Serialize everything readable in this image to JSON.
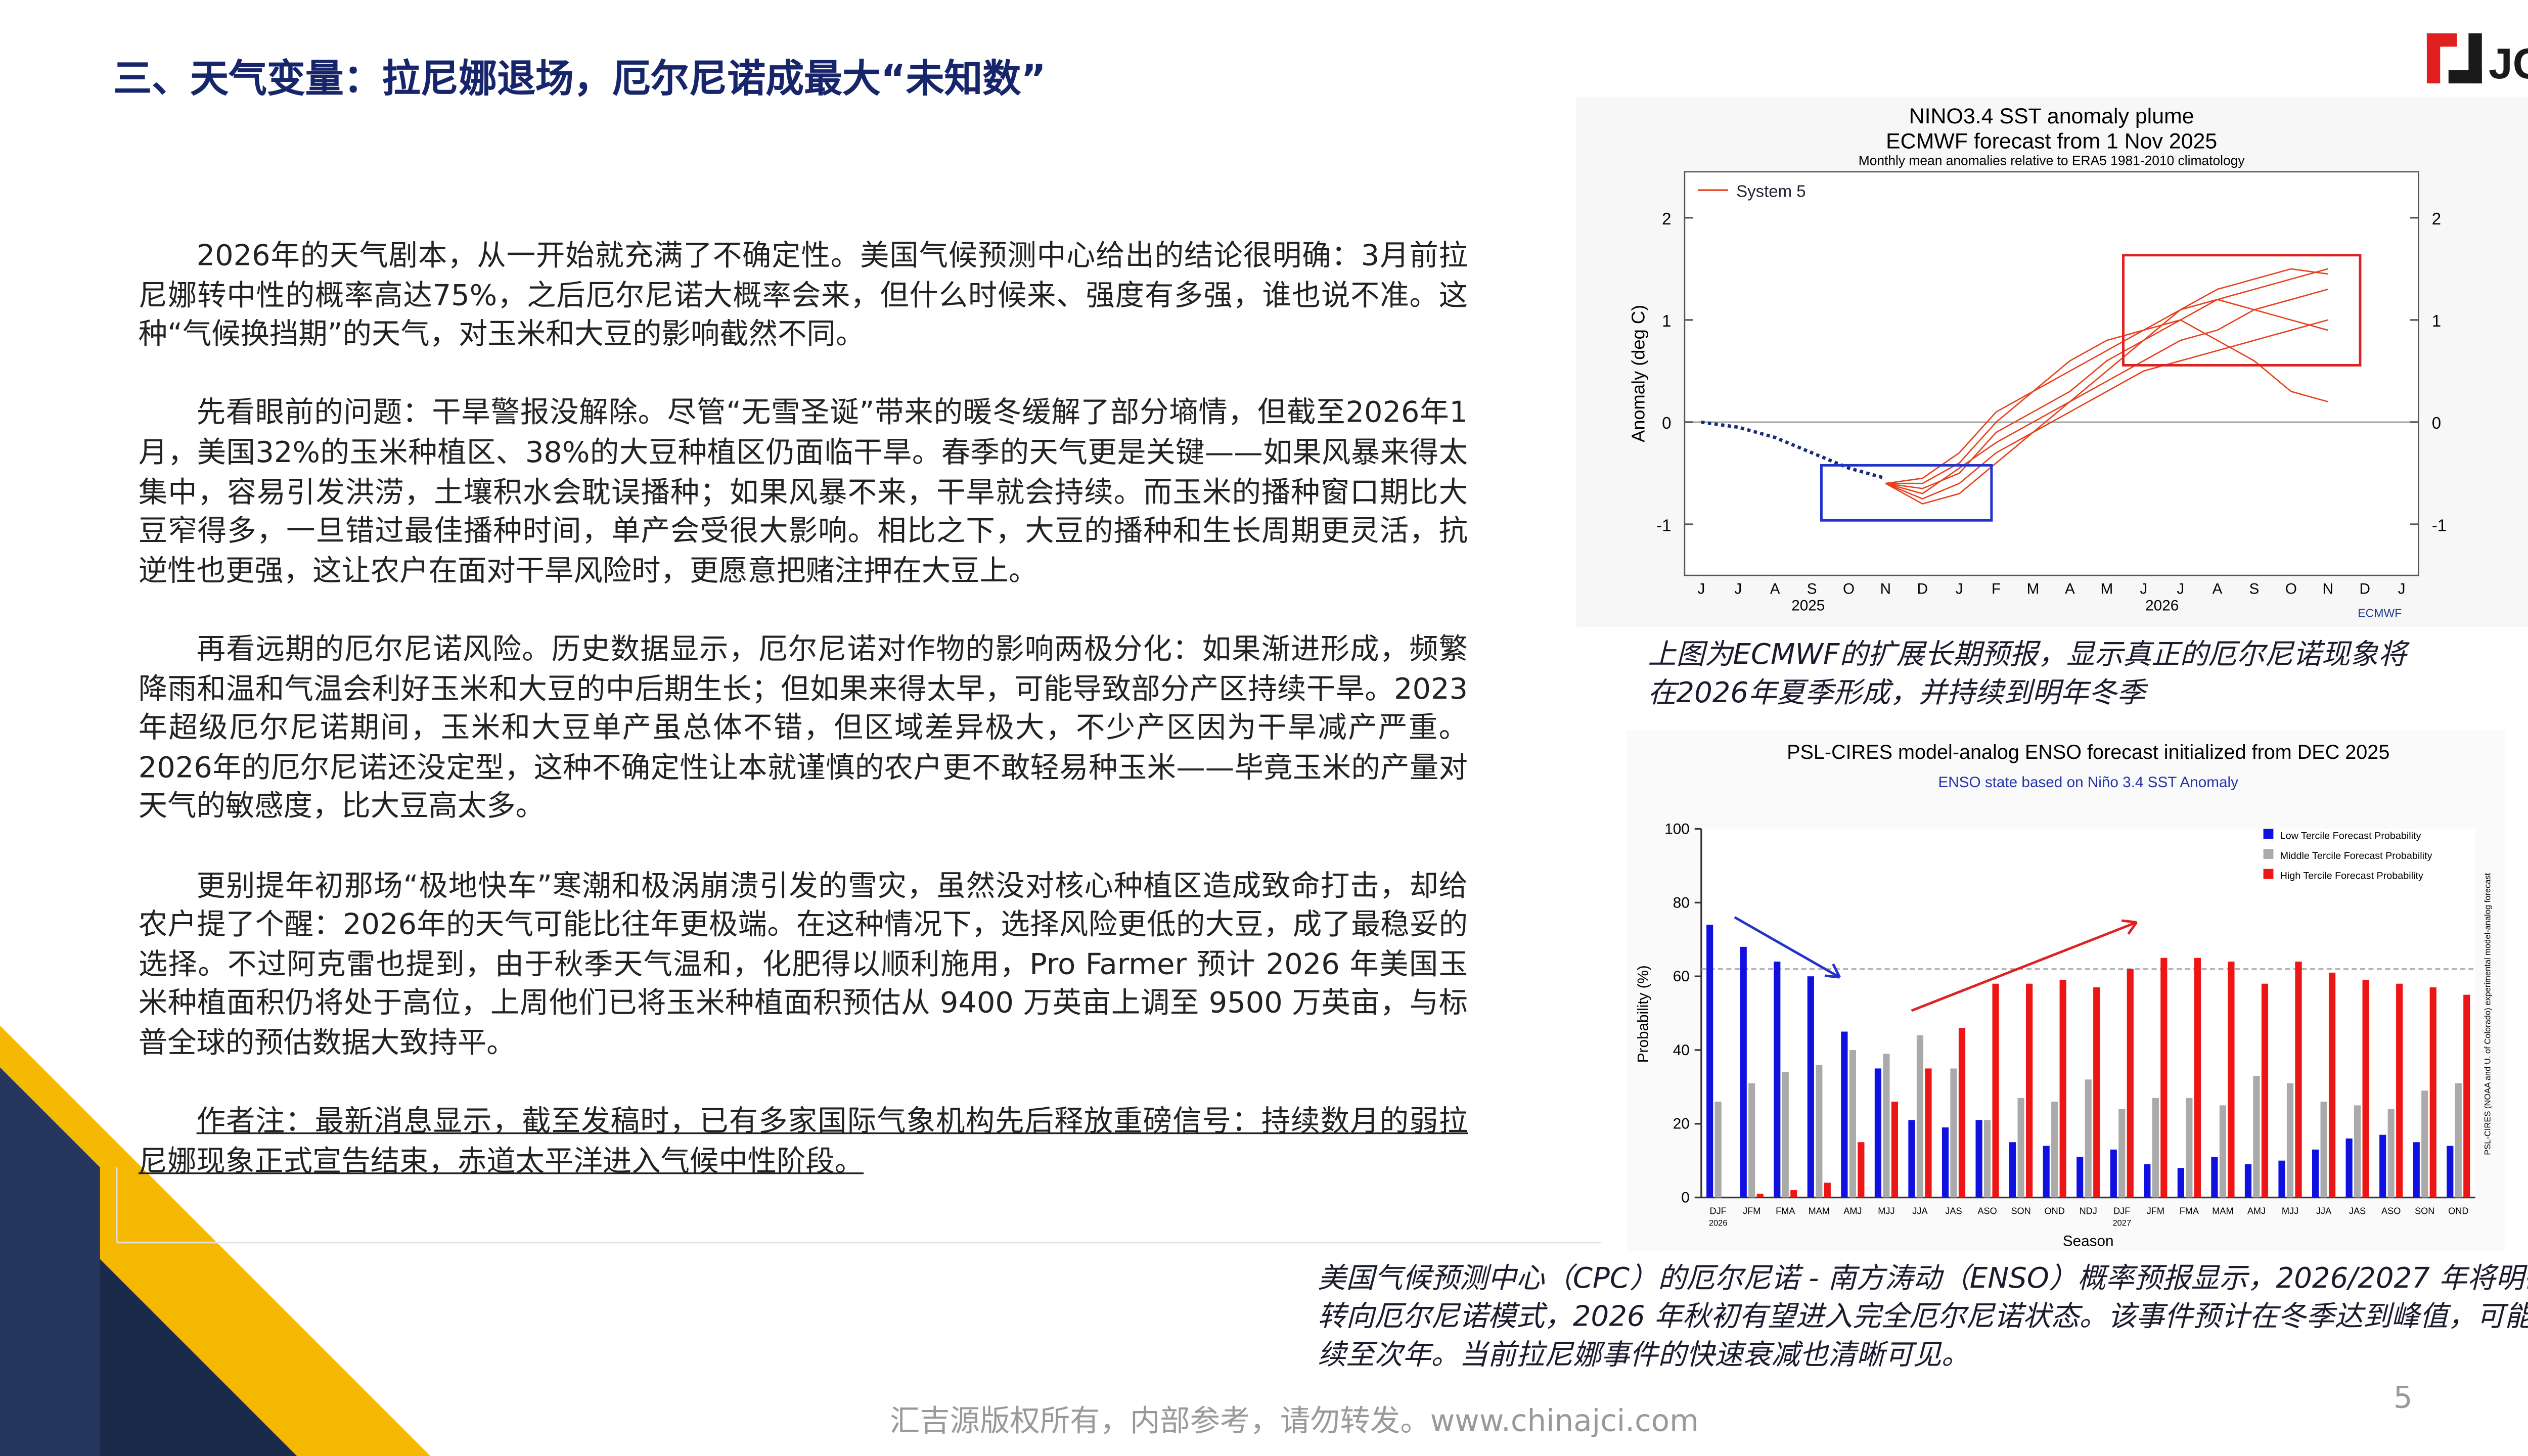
{
  "header": {
    "title": "三、天气变量：拉尼娜退场，厄尔尼诺成最大“未知数”",
    "logo": "JCI"
  },
  "body": {
    "paragraphs": [
      "2026年的天气剧本，从一开始就充满了不确定性。美国气候预测中心给出的结论很明确：3月前拉尼娜转中性的概率高达75%，之后厄尔尼诺大概率会来，但什么时候来、强度有多强，谁也说不准。这种“气候换挡期”的天气，对玉米和大豆的影响截然不同。",
      "先看眼前的问题：干旱警报没解除。尽管“无雪圣诞”带来的暖冬缓解了部分墒情，但截至2026年1月，美国32%的玉米种植区、38%的大豆种植区仍面临干旱。春季的天气更是关键——如果风暴来得太集中，容易引发洪涝，土壤积水会耽误播种；如果风暴不来，干旱就会持续。而玉米的播种窗口期比大豆窄得多，一旦错过最佳播种时间，单产会受很大影响。相比之下，大豆的播种和生长周期更灵活，抗逆性也更强，这让农户在面对干旱风险时，更愿意把赌注押在大豆上。",
      "再看远期的厄尔尼诺风险。历史数据显示，厄尔尼诺对作物的影响两极分化：如果渐进形成，频繁降雨和温和气温会利好玉米和大豆的中后期生长；但如果来得太早，可能导致部分产区持续干旱。2023年超级厄尔尼诺期间，玉米和大豆单产虽总体不错，但区域差异极大，不少产区因为干旱减产严重。2026年的厄尔尼诺还没定型，这种不确定性让本就谨慎的农户更不敢轻易种玉米——毕竟玉米的产量对天气的敏感度，比大豆高太多。",
      "更别提年初那场“极地快车”寒潮和极涡崩溃引发的雪灾，虽然没对核心种植区造成致命打击，却给农户提了个醒：2026年的天气可能比往年更极端。在这种情况下，选择风险更低的大豆，成了最稳妥的选择。不过阿克雷也提到，由于秋季天气温和，化肥得以顺利施用，Pro Farmer 预计 2026 年美国玉米种植面积仍将处于高位，上周他们已将玉米种植面积预估从 9400 万英亩上调至 9500 万英亩，与标普全球的预估数据大致持平。",
      "作者注：最新消息显示，截至发稿时，已有多家国际气象机构先后释放重磅信号：持续数月的弱拉尼娜现象正式宣告结束，赤道太平洋进入气候中性阶段。"
    ]
  },
  "figures": [
    {
      "caption": "上图为ECMWF的扩展长期预报，显示真正的厄尔尼诺现象将在2026年夏季形成，并持续到明年冬季",
      "chart_data": {
        "type": "plume",
        "title": "NINO3.4 SST anomaly plume",
        "title2": "ECMWF forecast from 1 Nov 2025",
        "subtitle": "Monthly mean anomalies relative to ERA5 1981-2010 climatology",
        "y_label": "Anomaly (deg C)",
        "legend": "System 5",
        "source": "ECMWF",
        "color": "#e8401c",
        "categories": [
          "J",
          "J",
          "A",
          "S",
          "O",
          "N",
          "D",
          "J",
          "F",
          "M",
          "A",
          "M",
          "J",
          "J",
          "A",
          "S",
          "O",
          "N",
          "D",
          "J"
        ],
        "year_labels": [
          "2025",
          "2026"
        ],
        "ylim": [
          -1.5,
          2.45
        ],
        "yticks": [
          -1,
          0,
          1,
          2
        ],
        "observed": [
          0.0,
          -0.05,
          -0.15,
          -0.3,
          -0.45,
          -0.55,
          null,
          null,
          null,
          null,
          null,
          null,
          null,
          null,
          null,
          null,
          null,
          null,
          null,
          null
        ],
        "members": [
          [
            null,
            null,
            null,
            null,
            null,
            -0.6,
            -0.65,
            -0.5,
            -0.1,
            0.1,
            0.3,
            0.6,
            0.8,
            1.0,
            1.2,
            1.3,
            1.4,
            1.5,
            null,
            null
          ],
          [
            null,
            null,
            null,
            null,
            null,
            -0.6,
            -0.7,
            -0.45,
            -0.2,
            0.0,
            0.2,
            0.4,
            0.6,
            0.8,
            0.9,
            1.1,
            1.2,
            1.3,
            null,
            null
          ],
          [
            null,
            null,
            null,
            null,
            null,
            -0.6,
            -0.6,
            -0.4,
            0.0,
            0.3,
            0.5,
            0.7,
            0.9,
            1.1,
            1.2,
            1.1,
            1.0,
            0.9,
            null,
            null
          ],
          [
            null,
            null,
            null,
            null,
            null,
            -0.6,
            -0.75,
            -0.6,
            -0.3,
            -0.1,
            0.1,
            0.3,
            0.5,
            0.6,
            0.7,
            0.8,
            0.9,
            1.0,
            null,
            null
          ],
          [
            null,
            null,
            null,
            null,
            null,
            -0.6,
            -0.55,
            -0.3,
            0.1,
            0.3,
            0.6,
            0.8,
            0.9,
            1.0,
            0.8,
            0.6,
            0.3,
            0.2,
            null,
            null
          ],
          [
            null,
            null,
            null,
            null,
            null,
            -0.6,
            -0.8,
            -0.7,
            -0.4,
            -0.1,
            0.2,
            0.5,
            0.8,
            1.1,
            1.3,
            1.4,
            1.5,
            1.45,
            null,
            null
          ]
        ]
      }
    },
    {
      "caption": "美国气候预测中心（CPC）的厄尔尼诺 - 南方涛动（ENSO）概率预报显示，2026/2027 年将明确转向厄尔尼诺模式，2026 年秋初有望进入完全厄尔尼诺状态。该事件预计在冬季达到峰值，可能持续至次年。当前拉尼娜事件的快速衰减也清晰可见。",
      "chart_data": {
        "type": "bar",
        "title": "PSL-CIRES model-analog ENSO forecast initialized from DEC 2025",
        "subtitle": "ENSO state based on Niño 3.4 SST Anomaly",
        "y_label": "Probability (%)",
        "x_label": "Season",
        "side_note": "PSL-CIRES (NOAA and U. of Colorado) experimental model-analog forecast",
        "categories": [
          "DJF",
          "JFM",
          "FMA",
          "MAM",
          "AMJ",
          "MJJ",
          "JJA",
          "JAS",
          "ASO",
          "SON",
          "OND",
          "NDJ",
          "DJF",
          "JFM",
          "FMA",
          "MAM",
          "AMJ",
          "MJJ",
          "JJA",
          "JAS",
          "ASO",
          "SON",
          "OND"
        ],
        "year_labels": [
          "2026",
          "2027"
        ],
        "ylim": [
          0,
          100
        ],
        "yticks": [
          0,
          20,
          40,
          60,
          80,
          100
        ],
        "reference_line": 62,
        "series": [
          {
            "name": "Low Tercile Forecast Probability",
            "color": "#1010e0",
            "values": [
              74,
              68,
              64,
              60,
              45,
              35,
              21,
              19,
              21,
              15,
              14,
              11,
              13,
              9,
              8,
              11,
              9,
              10,
              13,
              16,
              17,
              15,
              14
            ]
          },
          {
            "name": "Middle Tercile Forecast Probability",
            "color": "#aaaaaa",
            "values": [
              26,
              31,
              34,
              36,
              40,
              39,
              44,
              35,
              21,
              27,
              26,
              32,
              24,
              27,
              27,
              25,
              33,
              31,
              26,
              25,
              24,
              29,
              31
            ]
          },
          {
            "name": "High Tercile Forecast Probability",
            "color": "#ee1515",
            "values": [
              0,
              1,
              2,
              4,
              15,
              26,
              35,
              46,
              58,
              58,
              59,
              57,
              62,
              65,
              65,
              64,
              58,
              64,
              61,
              59,
              58,
              57,
              55
            ]
          }
        ]
      }
    }
  ],
  "footer": {
    "copyright": "汇吉源版权所有，内部参考，请勿转发。www.chinajci.com",
    "page": "5"
  }
}
